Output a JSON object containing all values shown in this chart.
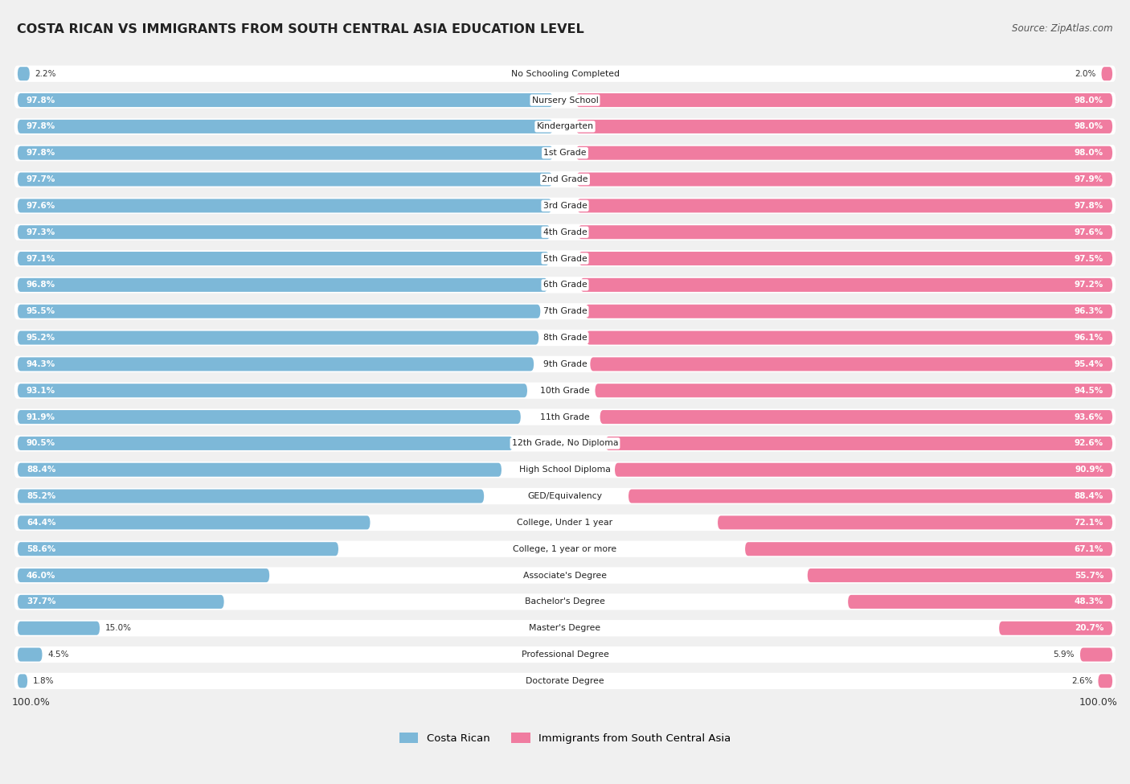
{
  "title": "COSTA RICAN VS IMMIGRANTS FROM SOUTH CENTRAL ASIA EDUCATION LEVEL",
  "source": "Source: ZipAtlas.com",
  "categories": [
    "No Schooling Completed",
    "Nursery School",
    "Kindergarten",
    "1st Grade",
    "2nd Grade",
    "3rd Grade",
    "4th Grade",
    "5th Grade",
    "6th Grade",
    "7th Grade",
    "8th Grade",
    "9th Grade",
    "10th Grade",
    "11th Grade",
    "12th Grade, No Diploma",
    "High School Diploma",
    "GED/Equivalency",
    "College, Under 1 year",
    "College, 1 year or more",
    "Associate's Degree",
    "Bachelor's Degree",
    "Master's Degree",
    "Professional Degree",
    "Doctorate Degree"
  ],
  "costa_rican": [
    2.2,
    97.8,
    97.8,
    97.8,
    97.7,
    97.6,
    97.3,
    97.1,
    96.8,
    95.5,
    95.2,
    94.3,
    93.1,
    91.9,
    90.5,
    88.4,
    85.2,
    64.4,
    58.6,
    46.0,
    37.7,
    15.0,
    4.5,
    1.8
  ],
  "immigrants": [
    2.0,
    98.0,
    98.0,
    98.0,
    97.9,
    97.8,
    97.6,
    97.5,
    97.2,
    96.3,
    96.1,
    95.4,
    94.5,
    93.6,
    92.6,
    90.9,
    88.4,
    72.1,
    67.1,
    55.7,
    48.3,
    20.7,
    5.9,
    2.6
  ],
  "costa_rican_color": "#7db8d8",
  "immigrants_color": "#f07ca0",
  "background_color": "#f0f0f0",
  "row_bg_color": "#e8e8e8",
  "legend_cr": "Costa Rican",
  "legend_im": "Immigrants from South Central Asia"
}
